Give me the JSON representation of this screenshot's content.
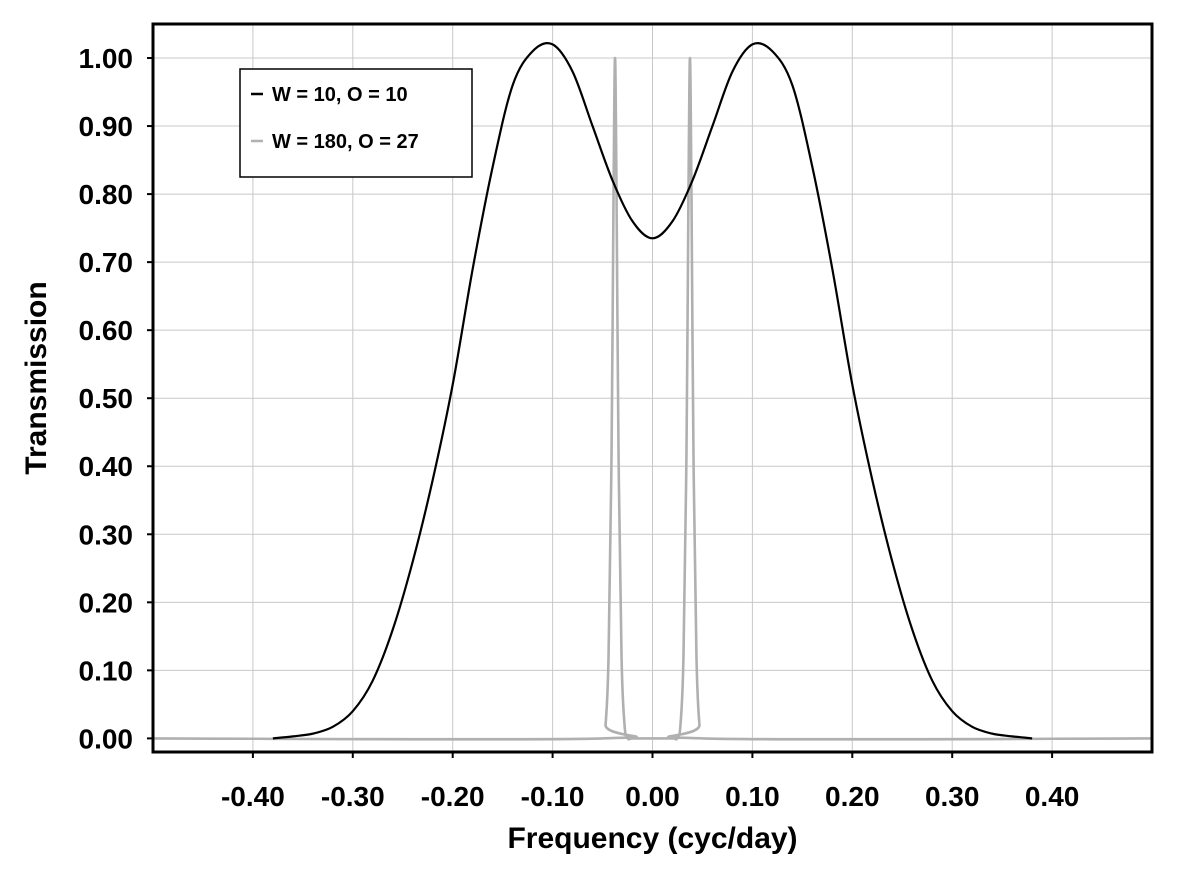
{
  "chart_data": {
    "type": "line",
    "title": "",
    "xlabel": "Frequency (cyc/day)",
    "ylabel": "Transmission",
    "xlim": [
      -0.5,
      0.5
    ],
    "ylim": [
      -0.02,
      1.05
    ],
    "grid": true,
    "legend_position": "top-left",
    "x_ticks": [
      "-0.40",
      "-0.30",
      "-0.20",
      "-0.10",
      "0.00",
      "0.10",
      "0.20",
      "0.30",
      "0.40"
    ],
    "x_tick_values": [
      -0.4,
      -0.3,
      -0.2,
      -0.1,
      0.0,
      0.1,
      0.2,
      0.3,
      0.4
    ],
    "y_ticks": [
      "0.00",
      "0.10",
      "0.20",
      "0.30",
      "0.40",
      "0.50",
      "0.60",
      "0.70",
      "0.80",
      "0.90",
      "1.00"
    ],
    "y_tick_values": [
      0.0,
      0.1,
      0.2,
      0.3,
      0.4,
      0.5,
      0.6,
      0.7,
      0.8,
      0.9,
      1.0
    ],
    "series": [
      {
        "name": "W = 10, O = 10",
        "color": "#000000",
        "x": [
          -0.38,
          -0.36,
          -0.34,
          -0.32,
          -0.3,
          -0.28,
          -0.26,
          -0.24,
          -0.22,
          -0.2,
          -0.18,
          -0.16,
          -0.14,
          -0.12,
          -0.1,
          -0.08,
          -0.06,
          -0.04,
          -0.02,
          0.0,
          0.02,
          0.04,
          0.06,
          0.08,
          0.1,
          0.12,
          0.14,
          0.16,
          0.18,
          0.2,
          0.22,
          0.24,
          0.26,
          0.28,
          0.3,
          0.32,
          0.34,
          0.36,
          0.38
        ],
        "y": [
          0.0,
          0.003,
          0.007,
          0.017,
          0.04,
          0.085,
          0.16,
          0.26,
          0.38,
          0.52,
          0.69,
          0.84,
          0.96,
          1.01,
          1.02,
          0.98,
          0.9,
          0.82,
          0.76,
          0.735,
          0.76,
          0.82,
          0.9,
          0.98,
          1.02,
          1.01,
          0.96,
          0.84,
          0.69,
          0.52,
          0.38,
          0.26,
          0.16,
          0.085,
          0.04,
          0.017,
          0.007,
          0.003,
          0.0
        ]
      },
      {
        "name": "W = 180, O = 27",
        "color": "#b0b0b0",
        "x": [
          -0.5,
          -0.05,
          -0.047,
          -0.044,
          -0.041,
          -0.039,
          -0.0375,
          -0.036,
          -0.034,
          -0.031,
          -0.028,
          -0.025,
          -0.02,
          0.0,
          0.02,
          0.025,
          0.028,
          0.031,
          0.034,
          0.036,
          0.0375,
          0.039,
          0.041,
          0.044,
          0.047,
          0.05,
          0.5
        ],
        "y": [
          0.0,
          0.0,
          0.02,
          0.12,
          0.42,
          0.8,
          1.0,
          0.8,
          0.42,
          0.12,
          0.02,
          0.0,
          0.0,
          0.0,
          0.0,
          0.0,
          0.02,
          0.12,
          0.42,
          0.8,
          1.0,
          0.8,
          0.42,
          0.12,
          0.02,
          0.0,
          0.0
        ]
      }
    ]
  }
}
